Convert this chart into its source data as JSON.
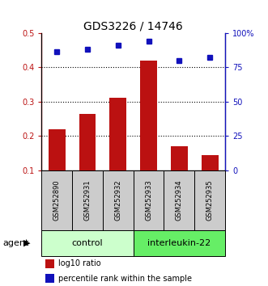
{
  "title": "GDS3226 / 14746",
  "samples": [
    "GSM252890",
    "GSM252931",
    "GSM252932",
    "GSM252933",
    "GSM252934",
    "GSM252935"
  ],
  "log10_ratio": [
    0.22,
    0.265,
    0.31,
    0.42,
    0.17,
    0.145
  ],
  "percentile_rank": [
    86,
    88,
    91,
    94,
    80,
    82
  ],
  "bar_color": "#bb1111",
  "dot_color": "#1111bb",
  "ylim_left": [
    0.1,
    0.5
  ],
  "ylim_right": [
    0,
    100
  ],
  "yticks_left": [
    0.1,
    0.2,
    0.3,
    0.4,
    0.5
  ],
  "yticks_right": [
    0,
    25,
    50,
    75,
    100
  ],
  "ytick_labels_right": [
    "0",
    "25",
    "50",
    "75",
    "100%"
  ],
  "groups": [
    {
      "label": "control",
      "color": "#ccffcc"
    },
    {
      "label": "interleukin-22",
      "color": "#66ee66"
    }
  ],
  "legend_bar_label": "log10 ratio",
  "legend_dot_label": "percentile rank within the sample",
  "bar_bottom": 0.1,
  "title_fontsize": 10,
  "tick_fontsize": 7,
  "sample_fontsize": 6,
  "group_fontsize": 8,
  "legend_fontsize": 7,
  "agent_fontsize": 8
}
